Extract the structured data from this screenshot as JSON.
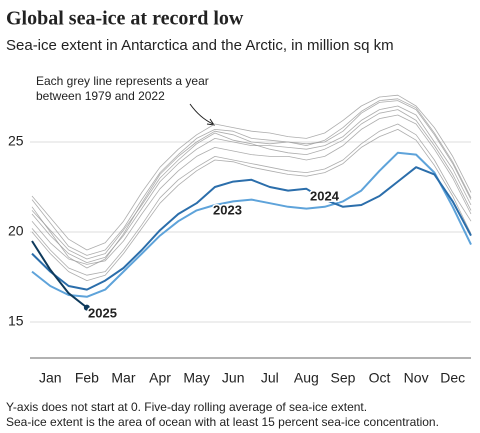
{
  "chart_data": {
    "type": "line",
    "title": "Global sea-ice at record low",
    "subtitle": "Sea-ice extent in Antarctica and the Arctic, in million sq km",
    "annotation": [
      "Each grey line represents a year",
      "between 1979 and 2022"
    ],
    "notes": [
      "Y-axis does not start at 0. Five-day rolling average of sea-ice extent.",
      "Sea-ice extent is the area of ocean with at least 15 percent sea-ice concentration."
    ],
    "x": [
      0,
      0.5,
      1,
      1.5,
      2,
      2.5,
      3,
      3.5,
      4,
      4.5,
      5,
      5.5,
      6,
      6.5,
      7,
      7.5,
      8,
      8.5,
      9,
      9.5,
      10,
      10.5,
      11,
      11.5,
      12
    ],
    "xlim": [
      0,
      12
    ],
    "xticks": [
      {
        "value": 0.5,
        "label": "Jan"
      },
      {
        "value": 1.5,
        "label": "Feb"
      },
      {
        "value": 2.5,
        "label": "Mar"
      },
      {
        "value": 3.5,
        "label": "Apr"
      },
      {
        "value": 4.5,
        "label": "May"
      },
      {
        "value": 5.5,
        "label": "Jun"
      },
      {
        "value": 6.5,
        "label": "Jul"
      },
      {
        "value": 7.5,
        "label": "Aug"
      },
      {
        "value": 8.5,
        "label": "Sep"
      },
      {
        "value": 9.5,
        "label": "Oct"
      },
      {
        "value": 10.5,
        "label": "Nov"
      },
      {
        "value": 11.5,
        "label": "Dec"
      }
    ],
    "ylim": [
      13,
      28
    ],
    "yticks": [
      15,
      20,
      25
    ],
    "grid": true,
    "series": [
      {
        "color": "#999999",
        "values": [
          21.0,
          19.8,
          18.8,
          18.3,
          18.6,
          19.8,
          21.3,
          22.8,
          23.8,
          24.6,
          25.2,
          25.0,
          24.8,
          24.8,
          24.7,
          24.6,
          24.8,
          25.3,
          26.2,
          26.8,
          27.0,
          26.5,
          25.0,
          23.5,
          21.5
        ]
      },
      {
        "color": "#999999",
        "values": [
          22.0,
          20.8,
          19.6,
          19.0,
          19.4,
          20.6,
          22.2,
          23.6,
          24.6,
          25.4,
          26.0,
          25.8,
          25.6,
          25.5,
          25.3,
          25.2,
          25.5,
          26.2,
          27.0,
          27.5,
          27.6,
          27.0,
          25.8,
          24.2,
          22.2
        ]
      },
      {
        "color": "#999999",
        "values": [
          20.2,
          19.0,
          18.0,
          17.6,
          17.8,
          19.0,
          20.4,
          21.9,
          22.9,
          23.6,
          24.2,
          24.0,
          23.8,
          23.6,
          23.4,
          23.3,
          23.5,
          24.0,
          24.9,
          25.6,
          26.0,
          25.4,
          24.0,
          22.2,
          20.6
        ]
      },
      {
        "color": "#999999",
        "values": [
          21.4,
          20.0,
          18.6,
          18.0,
          18.5,
          19.9,
          21.6,
          23.2,
          24.2,
          25.0,
          25.6,
          25.4,
          25.0,
          24.9,
          25.0,
          24.9,
          25.0,
          25.6,
          26.6,
          27.2,
          27.3,
          26.8,
          25.4,
          23.8,
          21.8
        ]
      },
      {
        "color": "#999999",
        "values": [
          20.6,
          19.4,
          18.5,
          18.2,
          18.4,
          19.5,
          21.0,
          22.4,
          23.4,
          24.2,
          24.7,
          24.5,
          24.3,
          24.2,
          24.2,
          24.0,
          24.2,
          24.8,
          25.7,
          26.3,
          26.5,
          26.0,
          24.6,
          23.0,
          21.0
        ]
      },
      {
        "color": "#999999",
        "values": [
          21.8,
          20.5,
          19.2,
          18.7,
          19.0,
          20.2,
          21.8,
          23.3,
          24.3,
          25.2,
          25.7,
          25.6,
          25.2,
          25.1,
          25.0,
          24.8,
          25.1,
          25.8,
          26.7,
          27.3,
          27.4,
          26.9,
          25.5,
          23.9,
          21.9
        ]
      },
      {
        "color": "#999999",
        "values": [
          20.0,
          18.8,
          17.8,
          17.3,
          17.6,
          18.8,
          20.2,
          21.6,
          22.6,
          23.4,
          24.0,
          23.9,
          23.6,
          23.4,
          23.2,
          23.1,
          23.3,
          23.8,
          24.7,
          25.3,
          25.7,
          25.1,
          23.7,
          22.0,
          19.9
        ]
      },
      {
        "color": "#999999",
        "values": [
          21.2,
          20.1,
          19.0,
          18.5,
          18.8,
          20.1,
          21.5,
          23.0,
          24.0,
          24.9,
          25.5,
          25.1,
          24.9,
          24.6,
          24.4,
          24.3,
          24.6,
          25.1,
          26.0,
          26.6,
          26.8,
          26.2,
          24.8,
          23.2,
          21.2
        ]
      },
      {
        "name": "2023",
        "color": "#5ea3da",
        "values": [
          17.8,
          17.0,
          16.5,
          16.4,
          16.8,
          17.8,
          18.8,
          19.8,
          20.6,
          21.2,
          21.5,
          21.7,
          21.8,
          21.6,
          21.4,
          21.3,
          21.4,
          21.7,
          22.3,
          23.4,
          24.4,
          24.3,
          23.3,
          21.4,
          19.3
        ]
      },
      {
        "name": "2024",
        "color": "#2b6eab",
        "values": [
          18.8,
          17.8,
          17.0,
          16.8,
          17.3,
          18.0,
          19.0,
          20.1,
          21.0,
          21.6,
          22.5,
          22.8,
          22.9,
          22.5,
          22.3,
          22.4,
          21.8,
          21.4,
          21.5,
          22.0,
          22.8,
          23.6,
          23.2,
          21.7,
          19.8
        ]
      },
      {
        "name": "2025",
        "color": "#0e3a5c",
        "values": [
          19.5,
          17.9,
          16.6,
          15.8,
          null,
          null,
          null,
          null,
          null,
          null,
          null,
          null,
          null,
          null,
          null,
          null,
          null,
          null,
          null,
          null,
          null,
          null,
          null,
          null,
          null
        ]
      }
    ]
  }
}
